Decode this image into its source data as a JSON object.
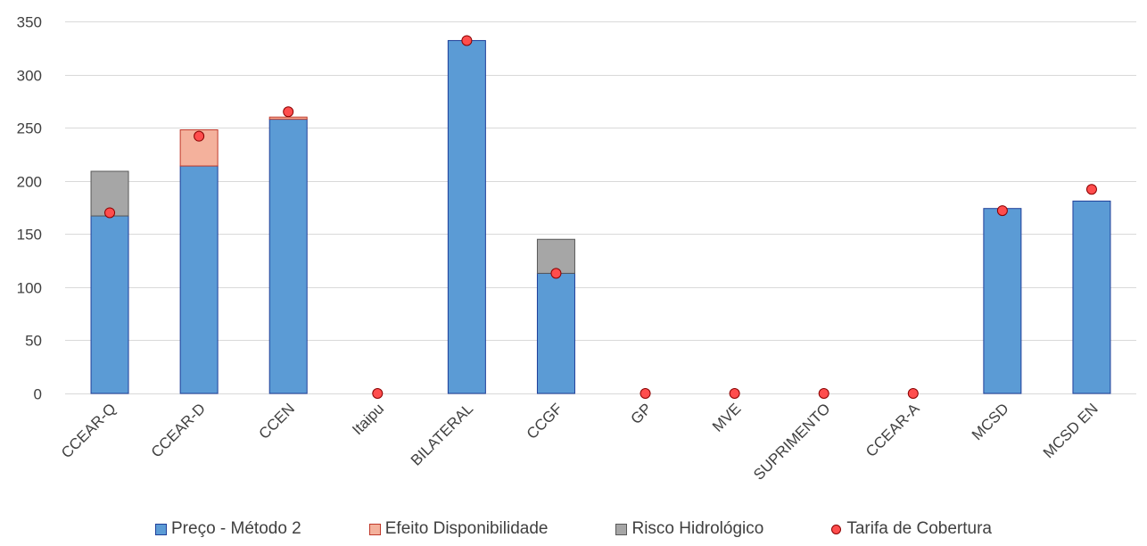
{
  "chart_data": {
    "type": "bar",
    "stacked": true,
    "categories": [
      "CCEAR-Q",
      "CCEAR-D",
      "CCEN",
      "Itaipu",
      "BILATERAL",
      "CCGF",
      "GP",
      "MVE",
      "SUPRIMENTO",
      "CCEAR-A",
      "MCSD",
      "MCSD EN"
    ],
    "ylim": [
      0,
      350
    ],
    "yticks": [
      0,
      50,
      100,
      150,
      200,
      250,
      300,
      350
    ],
    "grid": true,
    "legend_position": "bottom",
    "series": [
      {
        "name": "Preço - Método 2",
        "kind": "bar",
        "color": "#5b9bd5",
        "border": "#1f3f99",
        "values": [
          167,
          214,
          258,
          0,
          332,
          113,
          0,
          0,
          0,
          0,
          174,
          181
        ]
      },
      {
        "name": "Efeito Disponibilidade",
        "kind": "bar",
        "color": "#f4b19c",
        "border": "#c0392b",
        "values": [
          0,
          34,
          2,
          0,
          0,
          0,
          0,
          0,
          0,
          0,
          0,
          0
        ]
      },
      {
        "name": "Risco Hidrológico",
        "kind": "bar",
        "color": "#a6a6a6",
        "border": "#595959",
        "values": [
          42,
          0,
          0,
          0,
          0,
          32,
          0,
          0,
          0,
          0,
          0,
          0
        ]
      },
      {
        "name": "Tarifa de Cobertura",
        "kind": "marker",
        "color": "#ff4d4d",
        "border": "#8b0000",
        "values": [
          170,
          242,
          265,
          0,
          332,
          113,
          0,
          0,
          0,
          0,
          172,
          192
        ]
      }
    ]
  }
}
